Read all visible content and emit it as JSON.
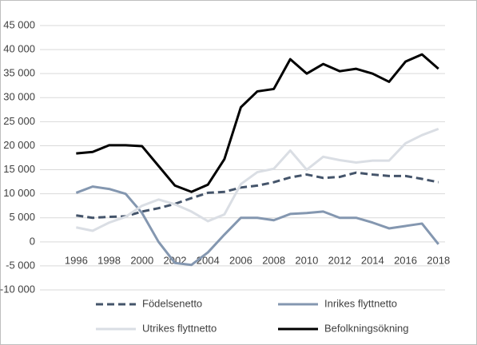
{
  "chart_data": {
    "type": "line",
    "x": [
      1996,
      1997,
      1998,
      1999,
      2000,
      2001,
      2002,
      2003,
      2004,
      2005,
      2006,
      2007,
      2008,
      2009,
      2010,
      2011,
      2012,
      2013,
      2014,
      2015,
      2016,
      2017,
      2018
    ],
    "xlim": [
      1993.8,
      2018.4
    ],
    "xticks": [
      1996,
      1998,
      2000,
      2002,
      2004,
      2006,
      2008,
      2010,
      2012,
      2014,
      2016,
      2018
    ],
    "ylim": [
      -10000,
      45000
    ],
    "yticks": [
      {
        "value": -10000,
        "label": "-10 000"
      },
      {
        "value": -5000,
        "label": "-5 000"
      },
      0,
      {
        "value": 5000,
        "label": "5 000"
      },
      {
        "value": 10000,
        "label": "10 000"
      },
      {
        "value": 15000,
        "label": "15 000"
      },
      {
        "value": 20000,
        "label": "20 000"
      },
      {
        "value": 25000,
        "label": "25 000"
      },
      {
        "value": 30000,
        "label": "30 000"
      },
      {
        "value": 35000,
        "label": "35 000"
      },
      {
        "value": 40000,
        "label": "40 000"
      },
      {
        "value": 45000,
        "label": "45 000"
      }
    ],
    "grid": true,
    "legend": "bottom",
    "series": [
      {
        "name": "Födelsenetto",
        "color": "#44546a",
        "dash": true,
        "values": [
          5500,
          5000,
          5200,
          5300,
          6300,
          7000,
          7900,
          9100,
          10200,
          10400,
          11300,
          11700,
          12400,
          13400,
          14000,
          13300,
          13500,
          14400,
          14000,
          13700,
          13700,
          13100,
          12400
        ]
      },
      {
        "name": "Inrikes flyttnetto",
        "color": "#8497b0",
        "dash": false,
        "values": [
          10200,
          11500,
          11000,
          10000,
          6000,
          0,
          -4400,
          -4800,
          -2200,
          1500,
          5000,
          5000,
          4500,
          5800,
          6000,
          6300,
          5000,
          5000,
          4000,
          2800,
          3300,
          3800,
          -500
        ]
      },
      {
        "name": "Utrikes flyttnetto",
        "color": "#dadee4",
        "dash": false,
        "values": [
          3000,
          2300,
          4000,
          5200,
          7500,
          8800,
          7800,
          6300,
          4300,
          5700,
          12000,
          14500,
          15200,
          19000,
          15000,
          17700,
          17000,
          16500,
          16900,
          16900,
          20500,
          22200,
          23500
        ]
      },
      {
        "name": "Befolkningsökning",
        "color": "#000000",
        "dash": false,
        "values": [
          18400,
          18700,
          20100,
          20100,
          19900,
          15800,
          11700,
          10400,
          11900,
          17200,
          28000,
          31300,
          31800,
          38000,
          35000,
          37000,
          35500,
          36000,
          35000,
          33300,
          37500,
          39000,
          36000
        ]
      }
    ]
  }
}
